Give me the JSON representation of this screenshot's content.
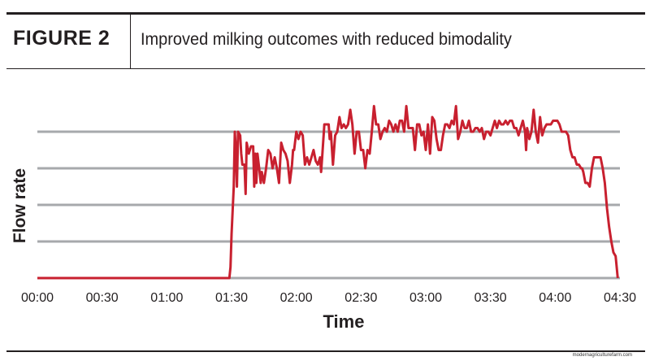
{
  "header": {
    "figure_label": "FIGURE 2",
    "title": "Improved milking outcomes with reduced bimodality"
  },
  "watermark": "modernagriculturefarm.com",
  "colors": {
    "line": "#c8202f",
    "grid": "#a7a9ac",
    "text": "#231f20"
  },
  "chart_data": {
    "type": "line",
    "title": "Improved milking outcomes with reduced bimodality",
    "xlabel": "Time",
    "ylabel": "Flow rate",
    "x_unit": "minutes",
    "xlim": [
      0,
      270
    ],
    "ylim": [
      0,
      4
    ],
    "x_ticks": [
      0,
      30,
      60,
      90,
      120,
      150,
      180,
      210,
      240,
      270
    ],
    "x_tick_labels": [
      "00:00",
      "00:30",
      "01:00",
      "01:30",
      "02:00",
      "02:30",
      "03:00",
      "03:30",
      "04:00",
      "04:30"
    ],
    "y_gridlines": [
      1,
      2,
      3,
      4
    ],
    "y_tick_labels_shown": false,
    "grid": "horizontal",
    "legend": "none",
    "series": [
      {
        "color": "#c8202f",
        "points": [
          [
            0,
            0
          ],
          [
            30,
            0
          ],
          [
            60,
            0
          ],
          [
            89,
            0
          ],
          [
            89.5,
            0.3
          ],
          [
            90,
            1.2
          ],
          [
            91,
            2.5
          ],
          [
            91.5,
            4.0
          ],
          [
            92,
            3.5
          ],
          [
            92.5,
            2.5
          ],
          [
            93,
            4.0
          ],
          [
            94,
            3.9
          ],
          [
            94.5,
            3.4
          ],
          [
            95,
            3.1
          ],
          [
            96,
            3.1
          ],
          [
            96.5,
            2.3
          ],
          [
            97,
            3.7
          ],
          [
            98,
            3.4
          ],
          [
            99,
            3.6
          ],
          [
            100,
            3.6
          ],
          [
            100.5,
            2.5
          ],
          [
            101,
            3.4
          ],
          [
            101.5,
            2.6
          ],
          [
            102,
            3.4
          ],
          [
            103,
            2.9
          ],
          [
            103.5,
            2.6
          ],
          [
            104,
            2.9
          ],
          [
            105,
            2.6
          ],
          [
            106,
            3.0
          ],
          [
            107,
            3.5
          ],
          [
            108,
            3.4
          ],
          [
            109,
            3.0
          ],
          [
            110,
            3.3
          ],
          [
            111,
            3.0
          ],
          [
            112,
            2.6
          ],
          [
            113,
            3.7
          ],
          [
            114,
            3.5
          ],
          [
            115,
            3.4
          ],
          [
            116,
            3.2
          ],
          [
            117,
            2.6
          ],
          [
            118,
            3.1
          ],
          [
            118.5,
            3.5
          ],
          [
            119,
            3.5
          ],
          [
            120,
            4.0
          ],
          [
            121,
            3.8
          ],
          [
            122,
            4.0
          ],
          [
            123,
            3.9
          ],
          [
            124,
            3.1
          ],
          [
            125,
            3.3
          ],
          [
            126,
            3.1
          ],
          [
            127,
            3.3
          ],
          [
            128,
            3.5
          ],
          [
            129,
            3.2
          ],
          [
            130,
            3.1
          ],
          [
            131,
            3.3
          ],
          [
            131.5,
            2.9
          ],
          [
            132,
            3.3
          ],
          [
            133,
            4.2
          ],
          [
            134,
            4.2
          ],
          [
            135,
            4.2
          ],
          [
            135.5,
            3.8
          ],
          [
            136,
            4.0
          ],
          [
            137,
            3.1
          ],
          [
            138,
            3.9
          ],
          [
            139,
            4.0
          ],
          [
            140,
            4.4
          ],
          [
            141,
            4.1
          ],
          [
            142,
            4.2
          ],
          [
            143,
            4.1
          ],
          [
            144,
            4.2
          ],
          [
            145,
            4.6
          ],
          [
            146,
            4.2
          ],
          [
            147,
            3.4
          ],
          [
            148,
            4.0
          ],
          [
            149,
            4.0
          ],
          [
            150,
            3.5
          ],
          [
            151,
            3.5
          ],
          [
            152,
            3.0
          ],
          [
            153,
            3.5
          ],
          [
            154,
            3.4
          ],
          [
            155,
            4.0
          ],
          [
            156,
            4.7
          ],
          [
            157,
            4.2
          ],
          [
            158,
            4.2
          ],
          [
            159,
            3.8
          ],
          [
            160,
            4.0
          ],
          [
            161,
            4.1
          ],
          [
            162,
            4.0
          ],
          [
            163,
            4.3
          ],
          [
            164,
            4.2
          ],
          [
            165,
            4.0
          ],
          [
            166,
            4.2
          ],
          [
            167,
            4.0
          ],
          [
            168,
            4.3
          ],
          [
            169,
            4.3
          ],
          [
            170,
            4.0
          ],
          [
            171,
            4.7
          ],
          [
            172,
            4.1
          ],
          [
            173,
            4.1
          ],
          [
            174,
            4.1
          ],
          [
            175,
            3.5
          ],
          [
            176,
            4.2
          ],
          [
            177,
            4.2
          ],
          [
            178,
            3.9
          ],
          [
            179,
            4.0
          ],
          [
            180,
            3.5
          ],
          [
            181,
            4.2
          ],
          [
            182,
            3.4
          ],
          [
            183,
            4.4
          ],
          [
            184,
            4.3
          ],
          [
            185,
            3.8
          ],
          [
            186,
            3.5
          ],
          [
            187,
            3.5
          ],
          [
            188,
            3.9
          ],
          [
            189,
            4.2
          ],
          [
            190,
            4.2
          ],
          [
            191,
            4.1
          ],
          [
            192,
            4.3
          ],
          [
            193,
            4.2
          ],
          [
            194,
            4.7
          ],
          [
            195,
            3.8
          ],
          [
            196,
            4.0
          ],
          [
            197,
            4.3
          ],
          [
            198,
            4.1
          ],
          [
            199,
            4.1
          ],
          [
            200,
            4.3
          ],
          [
            201,
            4.0
          ],
          [
            202,
            4.0
          ],
          [
            203,
            4.1
          ],
          [
            204,
            4.1
          ],
          [
            205,
            4.0
          ],
          [
            206,
            4.1
          ],
          [
            207,
            3.8
          ],
          [
            208,
            4.0
          ],
          [
            209,
            4.0
          ],
          [
            210,
            3.9
          ],
          [
            211,
            4.1
          ],
          [
            212,
            4.3
          ],
          [
            213,
            4.1
          ],
          [
            214,
            4.3
          ],
          [
            215,
            4.2
          ],
          [
            216,
            4.2
          ],
          [
            217,
            4.3
          ],
          [
            218,
            4.2
          ],
          [
            219,
            4.3
          ],
          [
            220,
            4.3
          ],
          [
            221,
            4.1
          ],
          [
            222,
            4.1
          ],
          [
            223,
            3.9
          ],
          [
            224,
            4.1
          ],
          [
            225,
            4.3
          ],
          [
            226,
            4.0
          ],
          [
            226.5,
            3.5
          ],
          [
            227,
            4.1
          ],
          [
            228,
            3.8
          ],
          [
            229,
            4.0
          ],
          [
            230,
            4.6
          ],
          [
            231,
            4.0
          ],
          [
            232,
            3.7
          ],
          [
            233,
            4.4
          ],
          [
            234,
            3.9
          ],
          [
            235,
            4.1
          ],
          [
            236,
            4.2
          ],
          [
            237,
            4.2
          ],
          [
            238,
            4.2
          ],
          [
            239,
            4.3
          ],
          [
            240,
            4.3
          ],
          [
            241,
            4.3
          ],
          [
            242,
            4.2
          ],
          [
            243,
            4.0
          ],
          [
            244,
            4.0
          ],
          [
            245,
            4.0
          ],
          [
            246,
            3.9
          ],
          [
            247,
            3.5
          ],
          [
            248,
            3.3
          ],
          [
            249,
            3.3
          ],
          [
            250,
            3.1
          ],
          [
            251,
            3.1
          ],
          [
            252,
            3.0
          ],
          [
            252.5,
            3.0
          ],
          [
            253,
            2.9
          ],
          [
            254,
            2.6
          ],
          [
            255,
            2.6
          ],
          [
            256,
            2.5
          ],
          [
            257,
            3.0
          ],
          [
            258,
            3.3
          ],
          [
            259,
            3.3
          ],
          [
            260,
            3.3
          ],
          [
            261,
            3.3
          ],
          [
            262,
            3.0
          ],
          [
            263,
            2.6
          ],
          [
            264,
            1.9
          ],
          [
            265,
            1.4
          ],
          [
            266,
            1.0
          ],
          [
            267,
            0.7
          ],
          [
            268,
            0.6
          ],
          [
            269,
            0
          ]
        ]
      }
    ]
  }
}
